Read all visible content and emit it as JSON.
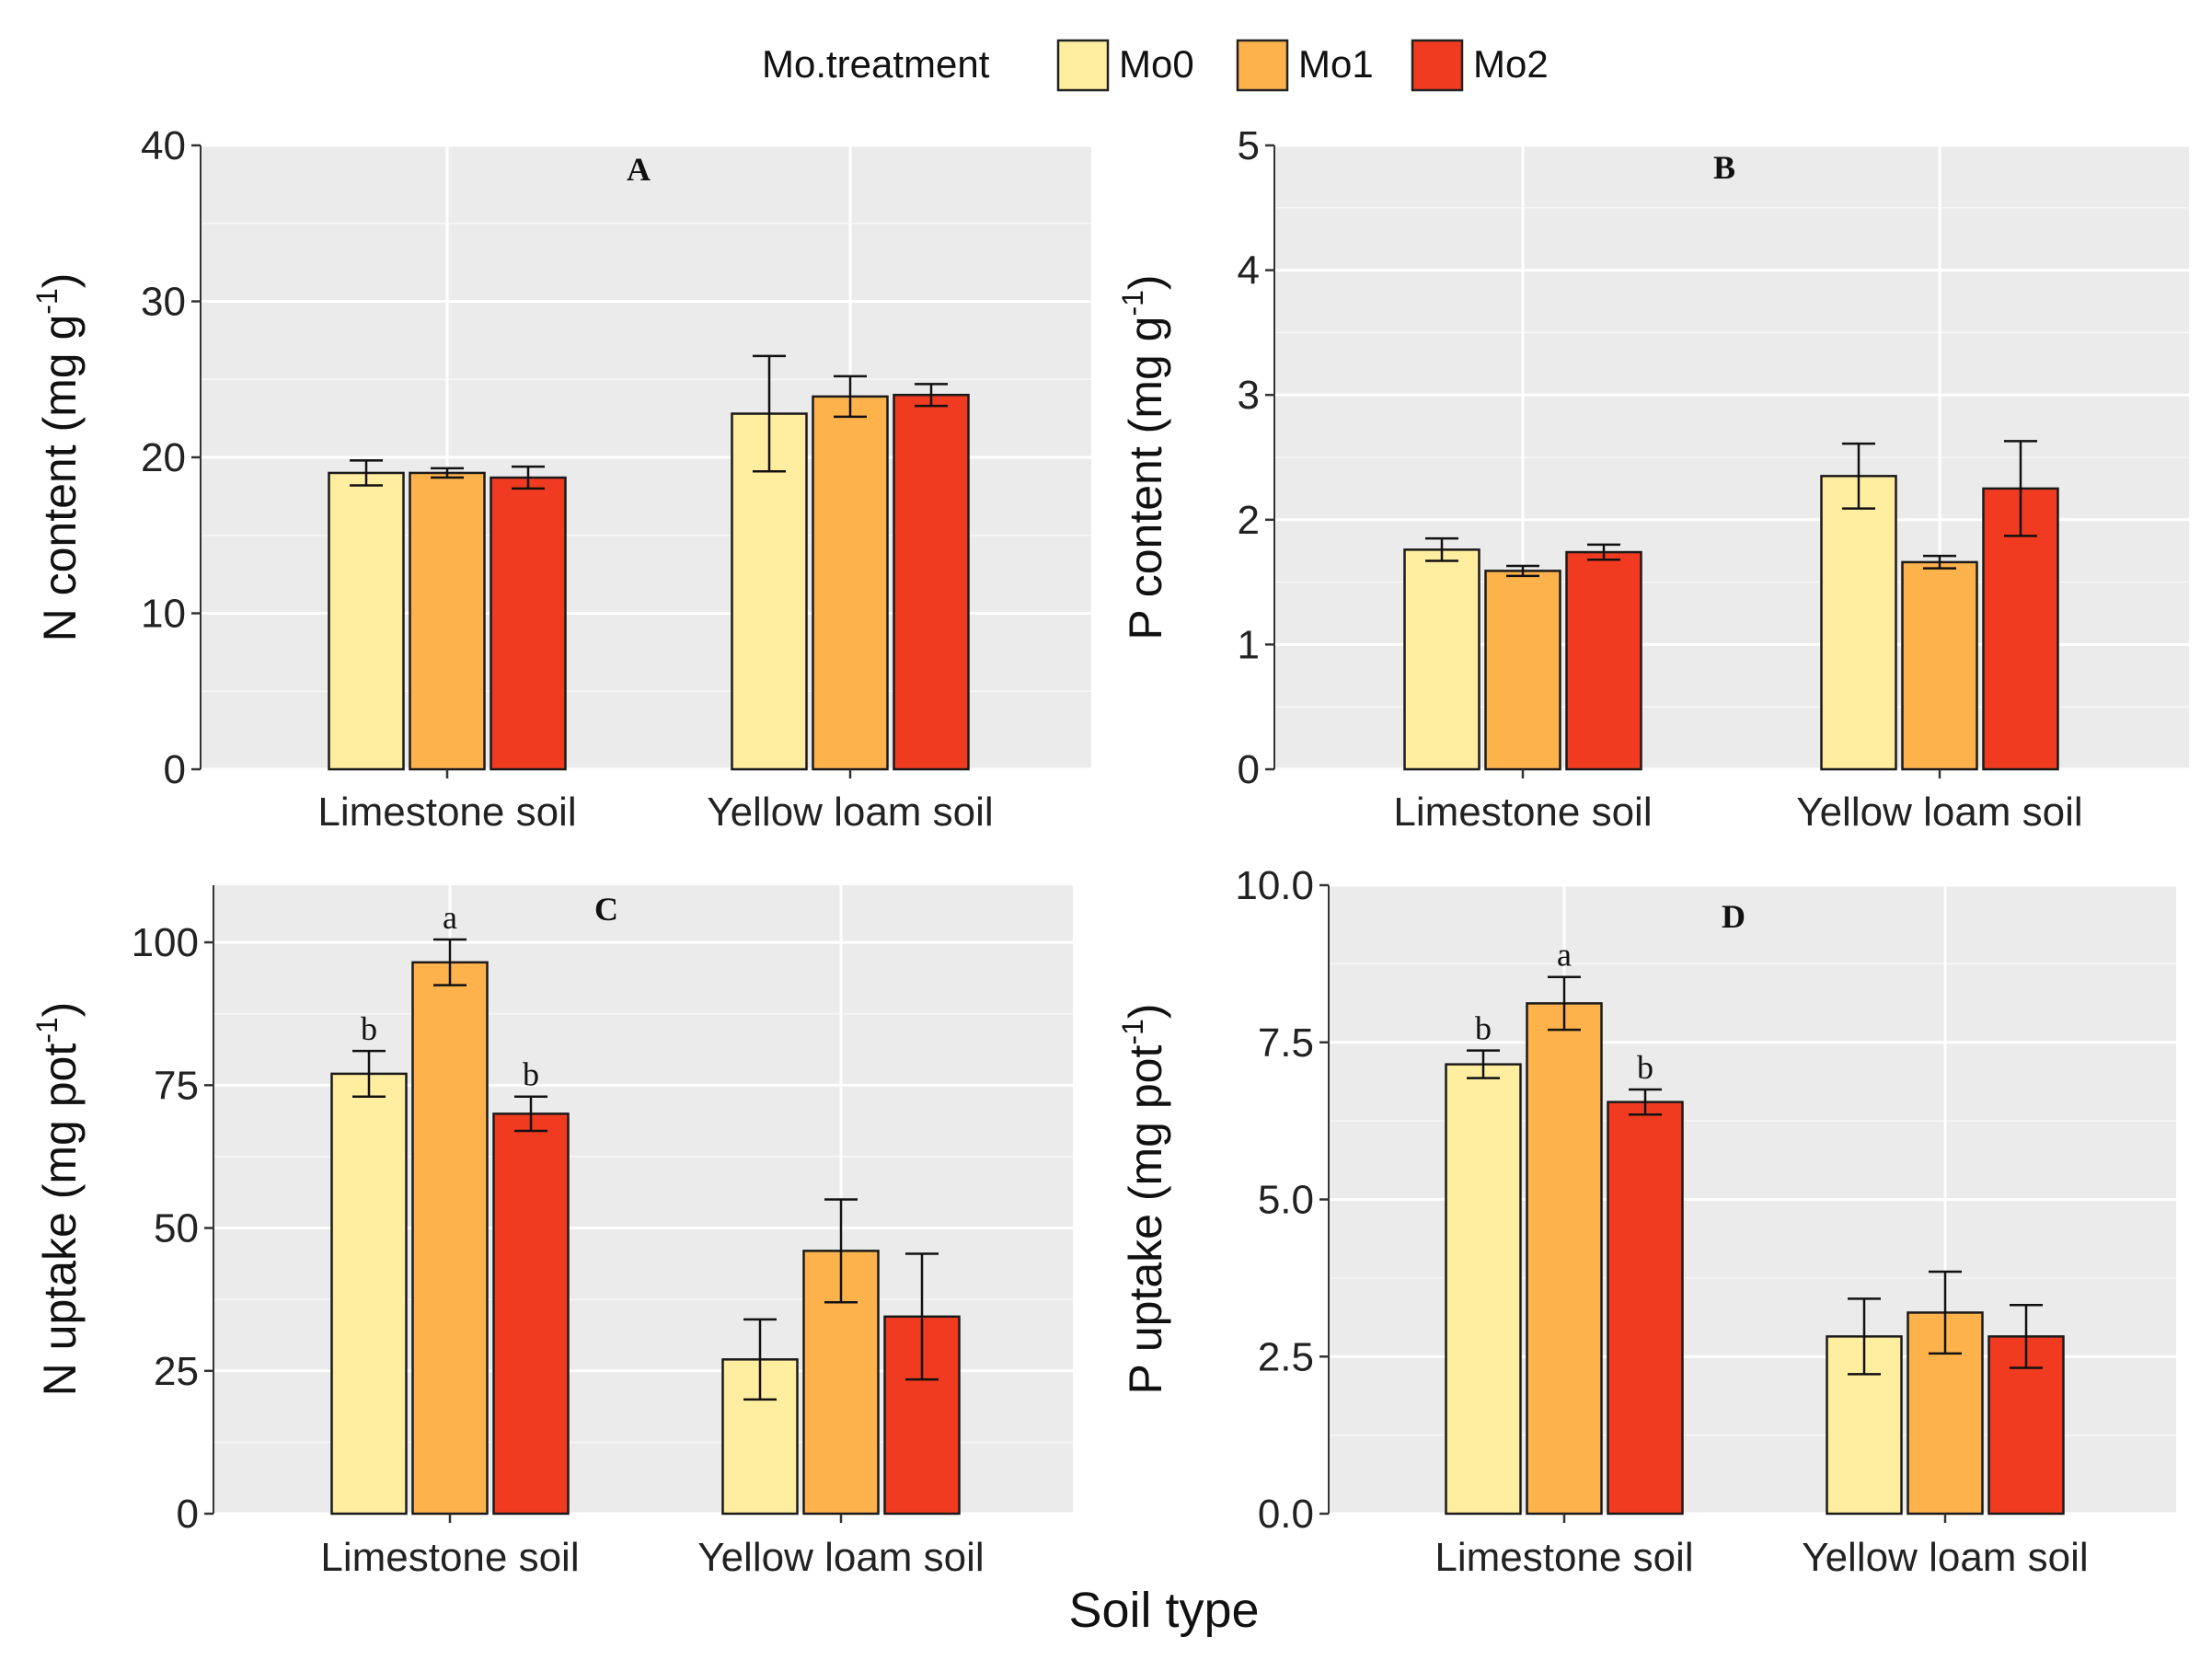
{
  "legend": {
    "title": "Mo.treatment",
    "items": [
      {
        "label": "Mo0",
        "color": "#ffeda0"
      },
      {
        "label": "Mo1",
        "color": "#feb24c"
      },
      {
        "label": "Mo2",
        "color": "#f03b20"
      }
    ]
  },
  "xaxis_title": "Soil type",
  "chart_data": [
    {
      "type": "bar",
      "panel": "A",
      "ylabel": "N content (mg g",
      "ylabel_sup": "-1",
      "ylabel_end": ")",
      "categories": [
        "Limestone soil",
        "Yellow loam soil"
      ],
      "ylim": [
        0,
        40
      ],
      "yticks": [
        0,
        10,
        20,
        30,
        40
      ],
      "ytick_labels": [
        "0",
        "10",
        "20",
        "30",
        "40"
      ],
      "series": [
        {
          "name": "Mo0",
          "values": [
            19.0,
            22.8
          ],
          "errors": [
            0.8,
            3.7
          ],
          "letters": [
            "",
            ""
          ]
        },
        {
          "name": "Mo1",
          "values": [
            19.0,
            23.9
          ],
          "errors": [
            0.3,
            1.3
          ],
          "letters": [
            "",
            ""
          ]
        },
        {
          "name": "Mo2",
          "values": [
            18.7,
            24.0
          ],
          "errors": [
            0.7,
            0.7
          ],
          "letters": [
            "",
            ""
          ]
        }
      ]
    },
    {
      "type": "bar",
      "panel": "B",
      "ylabel": "P content (mg g",
      "ylabel_sup": "-1",
      "ylabel_end": ")",
      "categories": [
        "Limestone soil",
        "Yellow loam soil"
      ],
      "ylim": [
        0,
        5
      ],
      "yticks": [
        0,
        1,
        2,
        3,
        4,
        5
      ],
      "ytick_labels": [
        "0",
        "1",
        "2",
        "3",
        "4",
        "5"
      ],
      "series": [
        {
          "name": "Mo0",
          "values": [
            1.76,
            2.35
          ],
          "errors": [
            0.09,
            0.26
          ],
          "letters": [
            "",
            ""
          ]
        },
        {
          "name": "Mo1",
          "values": [
            1.59,
            1.66
          ],
          "errors": [
            0.04,
            0.05
          ],
          "letters": [
            "",
            ""
          ]
        },
        {
          "name": "Mo2",
          "values": [
            1.74,
            2.25
          ],
          "errors": [
            0.06,
            0.38
          ],
          "letters": [
            "",
            ""
          ]
        }
      ]
    },
    {
      "type": "bar",
      "panel": "C",
      "ylabel": "N uptake (mg pot",
      "ylabel_sup": "-1",
      "ylabel_end": ")",
      "categories": [
        "Limestone soil",
        "Yellow loam soil"
      ],
      "ylim": [
        0,
        110
      ],
      "yticks": [
        0,
        25,
        50,
        75,
        100
      ],
      "ytick_labels": [
        "0",
        "25",
        "50",
        "75",
        "100"
      ],
      "series": [
        {
          "name": "Mo0",
          "values": [
            77,
            27
          ],
          "errors": [
            4,
            7
          ],
          "letters": [
            "b",
            ""
          ]
        },
        {
          "name": "Mo1",
          "values": [
            96.5,
            46
          ],
          "errors": [
            4,
            9
          ],
          "letters": [
            "a",
            ""
          ]
        },
        {
          "name": "Mo2",
          "values": [
            70,
            34.5
          ],
          "errors": [
            3,
            11
          ],
          "letters": [
            "b",
            ""
          ]
        }
      ]
    },
    {
      "type": "bar",
      "panel": "D",
      "ylabel": "P uptake (mg pot",
      "ylabel_sup": "-1",
      "ylabel_end": ")",
      "categories": [
        "Limestone soil",
        "Yellow loam soil"
      ],
      "ylim": [
        0,
        10
      ],
      "yticks": [
        0,
        2.5,
        5,
        7.5,
        10
      ],
      "ytick_labels": [
        "0.0",
        "2.5",
        "5.0",
        "7.5",
        "10.0"
      ],
      "series": [
        {
          "name": "Mo0",
          "values": [
            7.15,
            2.82
          ],
          "errors": [
            0.22,
            0.6
          ],
          "letters": [
            "b",
            ""
          ]
        },
        {
          "name": "Mo1",
          "values": [
            8.12,
            3.2
          ],
          "errors": [
            0.42,
            0.65
          ],
          "letters": [
            "a",
            ""
          ]
        },
        {
          "name": "Mo2",
          "values": [
            6.55,
            2.82
          ],
          "errors": [
            0.2,
            0.5
          ],
          "letters": [
            "b",
            ""
          ]
        }
      ]
    }
  ]
}
